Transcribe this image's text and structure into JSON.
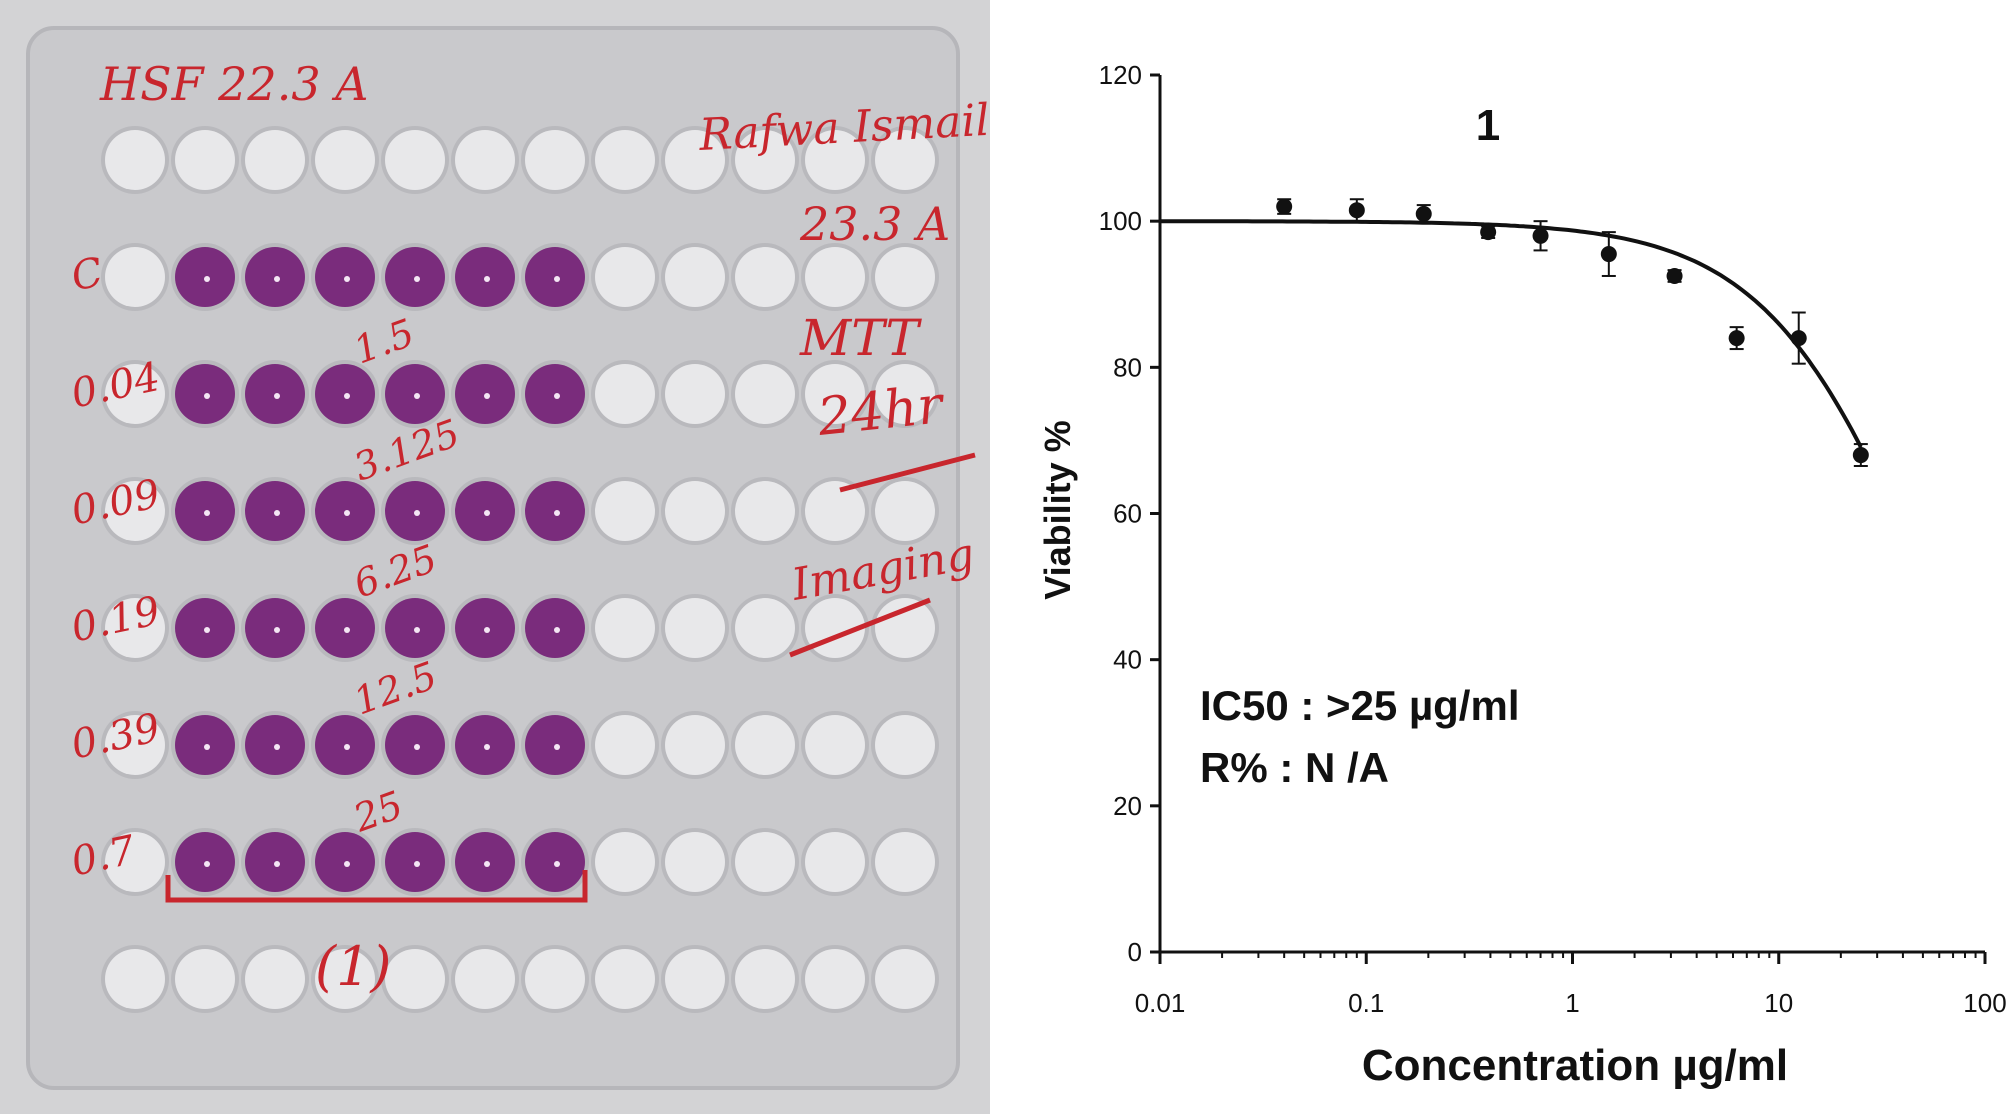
{
  "photo": {
    "plate_color": "#cfcfd1",
    "well_empty_color": "#e8e8ea",
    "well_purple_color": "#7a2c7c",
    "ink_color": "#c8262d",
    "header_left": "HSF   22.3   A",
    "header_right_1": "Rafwa Ismail",
    "header_right_2": "23.3 A",
    "assay": "MTT",
    "duration": "24hr",
    "imaging": "Imaging",
    "row_labels": [
      "C",
      "0.04",
      "0.09",
      "0.19",
      "0.39",
      "0.7"
    ],
    "conc_labels": [
      "1.5",
      "3.125",
      "6.25",
      "12.5",
      "25"
    ],
    "compound_label": "(1)"
  },
  "chart_data": {
    "type": "scatter",
    "title": "1",
    "xlabel": "Concentration µg/ml",
    "ylabel": "Viability %",
    "x_scale": "log",
    "xlim": [
      0.01,
      100
    ],
    "ylim": [
      0,
      120
    ],
    "x_ticks": [
      "0.01",
      "0.1",
      "1",
      "10",
      "100"
    ],
    "y_ticks": [
      "0",
      "20",
      "40",
      "60",
      "80",
      "100",
      "120"
    ],
    "points": [
      {
        "x": 0.04,
        "y": 102,
        "err": 1
      },
      {
        "x": 0.09,
        "y": 101.5,
        "err": 1.5
      },
      {
        "x": 0.19,
        "y": 101,
        "err": 1.2
      },
      {
        "x": 0.39,
        "y": 98.5,
        "err": 0.8
      },
      {
        "x": 0.7,
        "y": 98,
        "err": 2
      },
      {
        "x": 1.5,
        "y": 95.5,
        "err": 3
      },
      {
        "x": 3.125,
        "y": 92.5,
        "err": 0.8
      },
      {
        "x": 6.25,
        "y": 84,
        "err": 1.5
      },
      {
        "x": 12.5,
        "y": 84,
        "err": 3.5
      },
      {
        "x": 25,
        "y": 68,
        "err": 1.5
      }
    ],
    "fit_curve": "sigmoidal",
    "ic50_text": "IC50 : >25 µg/ml",
    "r_text": "R% : N /A"
  }
}
